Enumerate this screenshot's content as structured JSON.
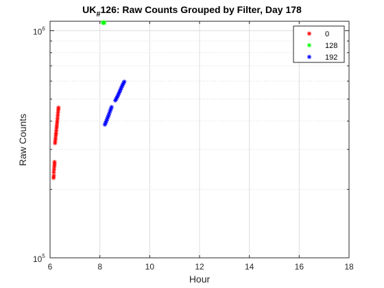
{
  "chart_data": {
    "type": "scatter",
    "title": {
      "prefix": "UK",
      "subscript": "#",
      "rest": "126: Raw Counts Grouped by Filter, Day 178"
    },
    "xlabel": "Hour",
    "ylabel": "Raw  Counts",
    "xlim": [
      6,
      18
    ],
    "ylim": [
      100000,
      1100000
    ],
    "yscale": "log",
    "xticks": [
      6,
      8,
      10,
      12,
      14,
      16,
      18
    ],
    "xtick_labels": [
      "6",
      "8",
      "10",
      "12",
      "14",
      "16",
      "18"
    ],
    "yticks": [
      {
        "value": 100000,
        "base": "10",
        "exp": "5"
      },
      {
        "value": 1000000,
        "base": "10",
        "exp": "6"
      }
    ],
    "grid": true,
    "legend_position": "top-right",
    "marker": "asterisk",
    "series": [
      {
        "name": "0",
        "color": "#ff0000",
        "points": [
          [
            6.14,
            225000
          ],
          [
            6.15,
            230000
          ],
          [
            6.15,
            238000
          ],
          [
            6.16,
            245000
          ],
          [
            6.17,
            252000
          ],
          [
            6.18,
            258000
          ],
          [
            6.18,
            264000
          ],
          [
            6.2,
            320000
          ],
          [
            6.21,
            328000
          ],
          [
            6.22,
            336000
          ],
          [
            6.23,
            345000
          ],
          [
            6.24,
            353000
          ],
          [
            6.25,
            362000
          ],
          [
            6.26,
            372000
          ],
          [
            6.27,
            381000
          ],
          [
            6.28,
            391000
          ],
          [
            6.29,
            401000
          ],
          [
            6.3,
            412000
          ],
          [
            6.31,
            424000
          ],
          [
            6.32,
            436000
          ],
          [
            6.33,
            448000
          ],
          [
            6.34,
            458000
          ]
        ]
      },
      {
        "name": "128",
        "color": "#00ff00",
        "points": [
          [
            8.12,
            1085000
          ],
          [
            8.14,
            1092000
          ],
          [
            8.16,
            1098000
          ],
          [
            8.18,
            1090000
          ]
        ]
      },
      {
        "name": "192",
        "color": "#0000ff",
        "points": [
          [
            8.2,
            386000
          ],
          [
            8.23,
            393000
          ],
          [
            8.26,
            400000
          ],
          [
            8.29,
            408000
          ],
          [
            8.32,
            416000
          ],
          [
            8.35,
            424000
          ],
          [
            8.38,
            433000
          ],
          [
            8.41,
            443000
          ],
          [
            8.44,
            452000
          ],
          [
            8.47,
            461000
          ],
          [
            8.62,
            493000
          ],
          [
            8.65,
            500000
          ],
          [
            8.68,
            507000
          ],
          [
            8.71,
            515000
          ],
          [
            8.74,
            523000
          ],
          [
            8.77,
            532000
          ],
          [
            8.8,
            541000
          ],
          [
            8.83,
            551000
          ],
          [
            8.86,
            560000
          ],
          [
            8.89,
            570000
          ],
          [
            8.92,
            580000
          ],
          [
            8.95,
            588000
          ],
          [
            8.98,
            596000
          ]
        ]
      }
    ]
  }
}
